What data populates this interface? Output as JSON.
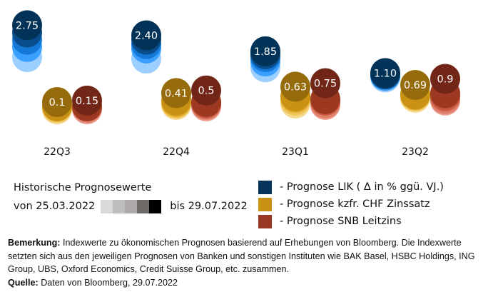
{
  "chart_data": {
    "type": "scatter",
    "title": "",
    "categories": [
      "22Q3",
      "22Q4",
      "23Q1",
      "23Q2"
    ],
    "series": [
      {
        "name": "Prognose LIK ( Δ in % ggü. VJ.)",
        "key": "lik",
        "colors": [
          "#9ccfff",
          "#3aa0ff",
          "#1478d6",
          "#0a4d8c",
          "#013359"
        ],
        "values": [
          2.75,
          2.4,
          1.85,
          1.1
        ],
        "labels": [
          "2.75",
          "2.40",
          "1.85",
          "1.10"
        ],
        "history": [
          [
            1.65,
            2.0,
            2.25,
            2.5,
            2.75
          ],
          [
            1.6,
            1.95,
            2.1,
            2.25,
            2.4
          ],
          [
            1.3,
            1.5,
            1.65,
            1.75,
            1.85
          ],
          [
            0.95,
            1.0,
            1.05,
            1.05,
            1.1
          ]
        ]
      },
      {
        "name": "Prognose kzfr. CHF Zinssatz",
        "key": "kzfr",
        "colors": [
          "#f5d98c",
          "#efc55a",
          "#e0a82a",
          "#c99214",
          "#956b0b"
        ],
        "values": [
          0.1,
          0.41,
          0.63,
          0.69
        ],
        "labels": [
          "0.1",
          "0.41",
          "0.63",
          "0.69"
        ],
        "history": [
          [
            -0.15,
            -0.1,
            -0.05,
            -0.05,
            0.1
          ],
          [
            0.0,
            0.05,
            0.1,
            0.15,
            0.41
          ],
          [
            0.05,
            0.15,
            0.25,
            0.3,
            0.63
          ],
          [
            0.25,
            0.3,
            0.35,
            0.35,
            0.69
          ]
        ]
      },
      {
        "name": "Prognose SNB Leitzins",
        "key": "snb",
        "colors": [
          "#eba192",
          "#e0806a",
          "#c8583f",
          "#9e3921",
          "#722617"
        ],
        "values": [
          0.15,
          0.5,
          0.75,
          0.9
        ],
        "labels": [
          "0.15",
          "0.5",
          "0.75",
          "0.9"
        ],
        "history": [
          [
            -0.15,
            -0.1,
            -0.05,
            -0.05,
            0.15
          ],
          [
            -0.05,
            0.0,
            0.05,
            0.1,
            0.5
          ],
          [
            0.0,
            0.05,
            0.15,
            0.2,
            0.75
          ],
          [
            0.15,
            0.2,
            0.3,
            0.4,
            0.9
          ]
        ]
      }
    ],
    "xlabel": "",
    "ylabel": "",
    "grid": false,
    "legend_position": "bottom-right"
  },
  "history_legend": {
    "title": "Historische Prognosewerte",
    "from_label": "von 25.03.2022",
    "to_label": "bis 29.07.2022",
    "gradient_colors": [
      "#d9d9d9",
      "#bdbdbd",
      "#aca9a8",
      "#6f6a68",
      "#000000"
    ]
  },
  "legend": [
    {
      "label": "- Prognose LIK ( Δ in % ggü. VJ.)",
      "color": "#06345c"
    },
    {
      "label": "- Prognose kzfr. CHF Zinssatz",
      "color": "#c99214"
    },
    {
      "label": "- Prognose SNB Leitzins",
      "color": "#983820"
    }
  ],
  "note": {
    "remark_label": "Bemerkung:",
    "remark_text": " Indexwerte zu ökonomischen Prognosen basierend auf Erhebungen von Bloomberg. Die Indexwerte setzten sich aus den jeweiligen Prognosen von Banken und sonstigen Instituten wie BAK Basel, HSBC Holdings, ING Group, UBS, Oxford Economics, Credit Suisse Group, etc. zusammen.",
    "source_label": "Quelle:",
    "source_text": " Daten von Bloomberg, 29.07.2022"
  }
}
